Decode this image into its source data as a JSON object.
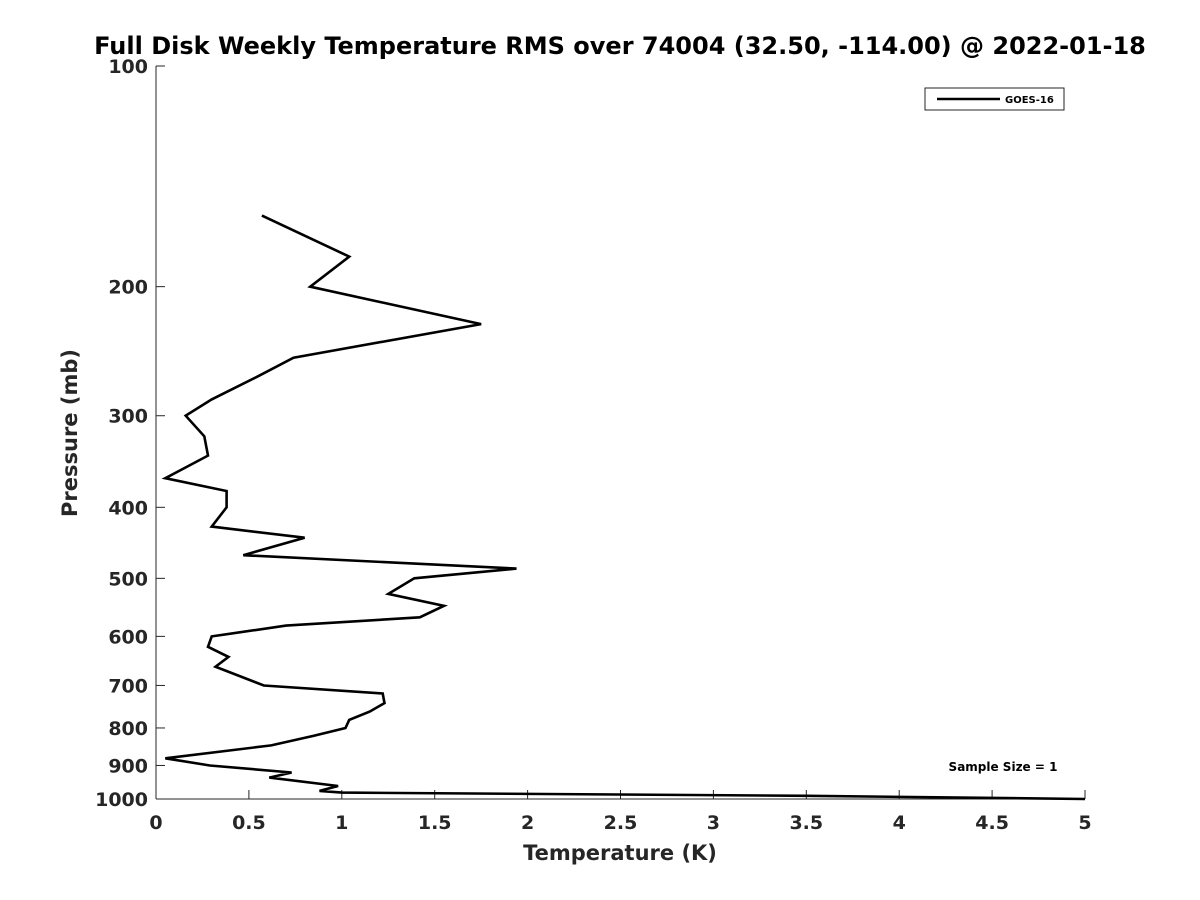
{
  "chart_data": {
    "type": "line",
    "title": "Full Disk Weekly Temperature RMS over 74004 (32.50, -114.00) @ 2022-01-18",
    "xlabel": "Temperature (K)",
    "ylabel": "Pressure (mb)",
    "xlim": [
      0,
      5
    ],
    "ylim": [
      100,
      1000
    ],
    "y_scale": "log",
    "y_reversed": true,
    "x_ticks": [
      "0",
      "0.5",
      "1",
      "1.5",
      "2",
      "2.5",
      "3",
      "3.5",
      "4",
      "4.5",
      "5"
    ],
    "y_ticks": [
      "100",
      "200",
      "300",
      "400",
      "500",
      "600",
      "700",
      "800",
      "900",
      "1000"
    ],
    "grid": false,
    "legend_position": "top-right",
    "annotation": "Sample Size = 1",
    "series": [
      {
        "name": "GOES-16",
        "color": "#000000",
        "points": [
          [
            0.57,
            160
          ],
          [
            1.04,
            182
          ],
          [
            0.83,
            200
          ],
          [
            1.75,
            225
          ],
          [
            0.74,
            250
          ],
          [
            0.55,
            265
          ],
          [
            0.3,
            285
          ],
          [
            0.16,
            300
          ],
          [
            0.26,
            320
          ],
          [
            0.28,
            340
          ],
          [
            0.05,
            365
          ],
          [
            0.38,
            380
          ],
          [
            0.38,
            400
          ],
          [
            0.3,
            425
          ],
          [
            0.8,
            440
          ],
          [
            0.47,
            465
          ],
          [
            1.94,
            485
          ],
          [
            1.39,
            500
          ],
          [
            1.25,
            525
          ],
          [
            1.55,
            545
          ],
          [
            1.42,
            565
          ],
          [
            0.7,
            580
          ],
          [
            0.3,
            600
          ],
          [
            0.28,
            620
          ],
          [
            0.39,
            640
          ],
          [
            0.32,
            660
          ],
          [
            0.58,
            700
          ],
          [
            1.22,
            718
          ],
          [
            1.23,
            740
          ],
          [
            1.15,
            760
          ],
          [
            1.04,
            780
          ],
          [
            1.02,
            800
          ],
          [
            0.85,
            820
          ],
          [
            0.62,
            845
          ],
          [
            0.05,
            880
          ],
          [
            0.29,
            900
          ],
          [
            0.73,
            920
          ],
          [
            0.61,
            935
          ],
          [
            0.98,
            960
          ],
          [
            0.88,
            975
          ],
          [
            1.0,
            980
          ],
          [
            3.5,
            990
          ],
          [
            5.0,
            1000
          ]
        ]
      }
    ]
  }
}
